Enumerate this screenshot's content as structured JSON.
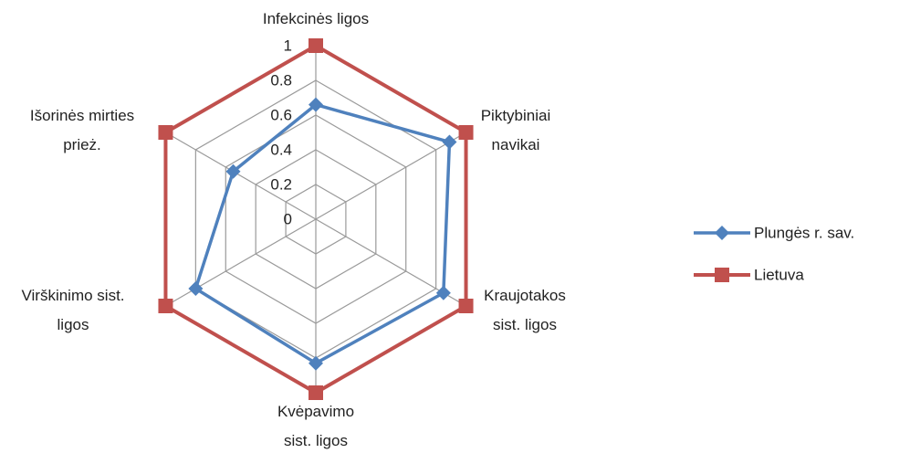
{
  "chart_data": {
    "type": "radar",
    "categories": [
      "Infekcinės ligos",
      "Piktybiniai navikai",
      "Kraujotakos sist. ligos",
      "Kvėpavimo sist. ligos",
      "Virškinimo sist. ligos",
      "Išorinės mirties prież."
    ],
    "series": [
      {
        "name": "Plungės r. sav.",
        "color": "#4f81bd",
        "values": [
          0.66,
          0.89,
          0.85,
          0.83,
          0.8,
          0.55
        ]
      },
      {
        "name": "Lietuva",
        "color": "#c0504d",
        "values": [
          1,
          1,
          1,
          1,
          1,
          1
        ]
      }
    ],
    "rlim": [
      0,
      1
    ],
    "rticks": [
      0,
      0.2,
      0.4,
      0.6,
      0.8,
      1
    ],
    "grid": true,
    "legend": "right"
  }
}
